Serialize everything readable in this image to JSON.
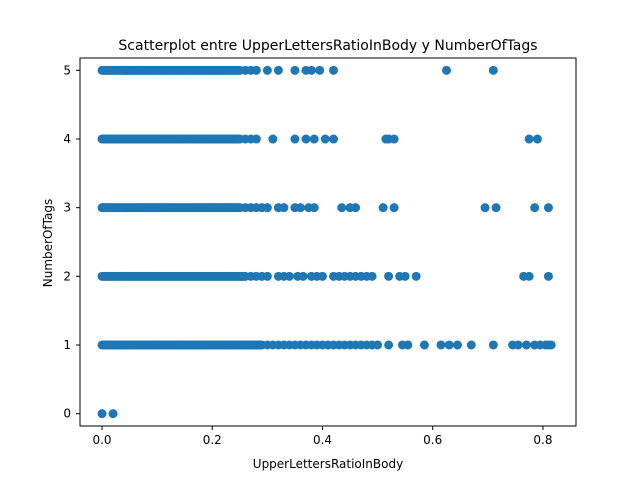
{
  "chart_data": {
    "type": "scatter",
    "title": "Scatterplot entre UpperLettersRatioInBody y NumberOfTags",
    "xlabel": "UpperLettersRatioInBody",
    "ylabel": "NumberOfTags",
    "xlim": [
      -0.04,
      0.86
    ],
    "ylim": [
      -0.18,
      5.18
    ],
    "xticks": [
      0.0,
      0.2,
      0.4,
      0.6,
      0.8
    ],
    "xtick_labels": [
      "0.0",
      "0.2",
      "0.4",
      "0.6",
      "0.8"
    ],
    "yticks": [
      0,
      1,
      2,
      3,
      4,
      5
    ],
    "ytick_labels": [
      "0",
      "1",
      "2",
      "3",
      "4",
      "5"
    ],
    "grid": false,
    "marker_color": "#1f77b4",
    "series": [
      {
        "bands": [
          {
            "y": 5,
            "dense_from": 0.0,
            "dense_to": 0.25
          },
          {
            "y": 4,
            "dense_from": 0.0,
            "dense_to": 0.25
          },
          {
            "y": 3,
            "dense_from": 0.0,
            "dense_to": 0.25
          },
          {
            "y": 2,
            "dense_from": 0.0,
            "dense_to": 0.26
          },
          {
            "y": 1,
            "dense_from": 0.0,
            "dense_to": 0.29
          }
        ],
        "points": [
          {
            "x": 0.0,
            "y": 0
          },
          {
            "x": 0.02,
            "y": 0
          },
          {
            "x": 0.26,
            "y": 5
          },
          {
            "x": 0.27,
            "y": 5
          },
          {
            "x": 0.28,
            "y": 5
          },
          {
            "x": 0.3,
            "y": 5
          },
          {
            "x": 0.32,
            "y": 5
          },
          {
            "x": 0.35,
            "y": 5
          },
          {
            "x": 0.37,
            "y": 5
          },
          {
            "x": 0.38,
            "y": 5
          },
          {
            "x": 0.395,
            "y": 5
          },
          {
            "x": 0.42,
            "y": 5
          },
          {
            "x": 0.625,
            "y": 5
          },
          {
            "x": 0.71,
            "y": 5
          },
          {
            "x": 0.26,
            "y": 4
          },
          {
            "x": 0.27,
            "y": 4
          },
          {
            "x": 0.28,
            "y": 4
          },
          {
            "x": 0.31,
            "y": 4
          },
          {
            "x": 0.35,
            "y": 4
          },
          {
            "x": 0.37,
            "y": 4
          },
          {
            "x": 0.385,
            "y": 4
          },
          {
            "x": 0.405,
            "y": 4
          },
          {
            "x": 0.42,
            "y": 4
          },
          {
            "x": 0.515,
            "y": 4
          },
          {
            "x": 0.52,
            "y": 4
          },
          {
            "x": 0.53,
            "y": 4
          },
          {
            "x": 0.775,
            "y": 4
          },
          {
            "x": 0.79,
            "y": 4
          },
          {
            "x": 0.26,
            "y": 3
          },
          {
            "x": 0.27,
            "y": 3
          },
          {
            "x": 0.28,
            "y": 3
          },
          {
            "x": 0.29,
            "y": 3
          },
          {
            "x": 0.3,
            "y": 3
          },
          {
            "x": 0.32,
            "y": 3
          },
          {
            "x": 0.33,
            "y": 3
          },
          {
            "x": 0.35,
            "y": 3
          },
          {
            "x": 0.36,
            "y": 3
          },
          {
            "x": 0.375,
            "y": 3
          },
          {
            "x": 0.385,
            "y": 3
          },
          {
            "x": 0.435,
            "y": 3
          },
          {
            "x": 0.45,
            "y": 3
          },
          {
            "x": 0.46,
            "y": 3
          },
          {
            "x": 0.51,
            "y": 3
          },
          {
            "x": 0.53,
            "y": 3
          },
          {
            "x": 0.695,
            "y": 3
          },
          {
            "x": 0.715,
            "y": 3
          },
          {
            "x": 0.785,
            "y": 3
          },
          {
            "x": 0.81,
            "y": 3
          },
          {
            "x": 0.27,
            "y": 2
          },
          {
            "x": 0.28,
            "y": 2
          },
          {
            "x": 0.29,
            "y": 2
          },
          {
            "x": 0.3,
            "y": 2
          },
          {
            "x": 0.32,
            "y": 2
          },
          {
            "x": 0.33,
            "y": 2
          },
          {
            "x": 0.34,
            "y": 2
          },
          {
            "x": 0.355,
            "y": 2
          },
          {
            "x": 0.365,
            "y": 2
          },
          {
            "x": 0.38,
            "y": 2
          },
          {
            "x": 0.39,
            "y": 2
          },
          {
            "x": 0.4,
            "y": 2
          },
          {
            "x": 0.42,
            "y": 2
          },
          {
            "x": 0.43,
            "y": 2
          },
          {
            "x": 0.44,
            "y": 2
          },
          {
            "x": 0.45,
            "y": 2
          },
          {
            "x": 0.46,
            "y": 2
          },
          {
            "x": 0.47,
            "y": 2
          },
          {
            "x": 0.48,
            "y": 2
          },
          {
            "x": 0.49,
            "y": 2
          },
          {
            "x": 0.52,
            "y": 2
          },
          {
            "x": 0.54,
            "y": 2
          },
          {
            "x": 0.55,
            "y": 2
          },
          {
            "x": 0.57,
            "y": 2
          },
          {
            "x": 0.765,
            "y": 2
          },
          {
            "x": 0.775,
            "y": 2
          },
          {
            "x": 0.81,
            "y": 2
          },
          {
            "x": 0.3,
            "y": 1
          },
          {
            "x": 0.31,
            "y": 1
          },
          {
            "x": 0.32,
            "y": 1
          },
          {
            "x": 0.33,
            "y": 1
          },
          {
            "x": 0.34,
            "y": 1
          },
          {
            "x": 0.35,
            "y": 1
          },
          {
            "x": 0.36,
            "y": 1
          },
          {
            "x": 0.37,
            "y": 1
          },
          {
            "x": 0.38,
            "y": 1
          },
          {
            "x": 0.39,
            "y": 1
          },
          {
            "x": 0.4,
            "y": 1
          },
          {
            "x": 0.41,
            "y": 1
          },
          {
            "x": 0.42,
            "y": 1
          },
          {
            "x": 0.43,
            "y": 1
          },
          {
            "x": 0.44,
            "y": 1
          },
          {
            "x": 0.45,
            "y": 1
          },
          {
            "x": 0.46,
            "y": 1
          },
          {
            "x": 0.47,
            "y": 1
          },
          {
            "x": 0.48,
            "y": 1
          },
          {
            "x": 0.49,
            "y": 1
          },
          {
            "x": 0.5,
            "y": 1
          },
          {
            "x": 0.52,
            "y": 1
          },
          {
            "x": 0.545,
            "y": 1
          },
          {
            "x": 0.555,
            "y": 1
          },
          {
            "x": 0.585,
            "y": 1
          },
          {
            "x": 0.615,
            "y": 1
          },
          {
            "x": 0.63,
            "y": 1
          },
          {
            "x": 0.645,
            "y": 1
          },
          {
            "x": 0.67,
            "y": 1
          },
          {
            "x": 0.71,
            "y": 1
          },
          {
            "x": 0.745,
            "y": 1
          },
          {
            "x": 0.755,
            "y": 1
          },
          {
            "x": 0.77,
            "y": 1
          },
          {
            "x": 0.785,
            "y": 1
          },
          {
            "x": 0.795,
            "y": 1
          },
          {
            "x": 0.805,
            "y": 1
          },
          {
            "x": 0.81,
            "y": 1
          },
          {
            "x": 0.815,
            "y": 1
          }
        ]
      }
    ]
  }
}
